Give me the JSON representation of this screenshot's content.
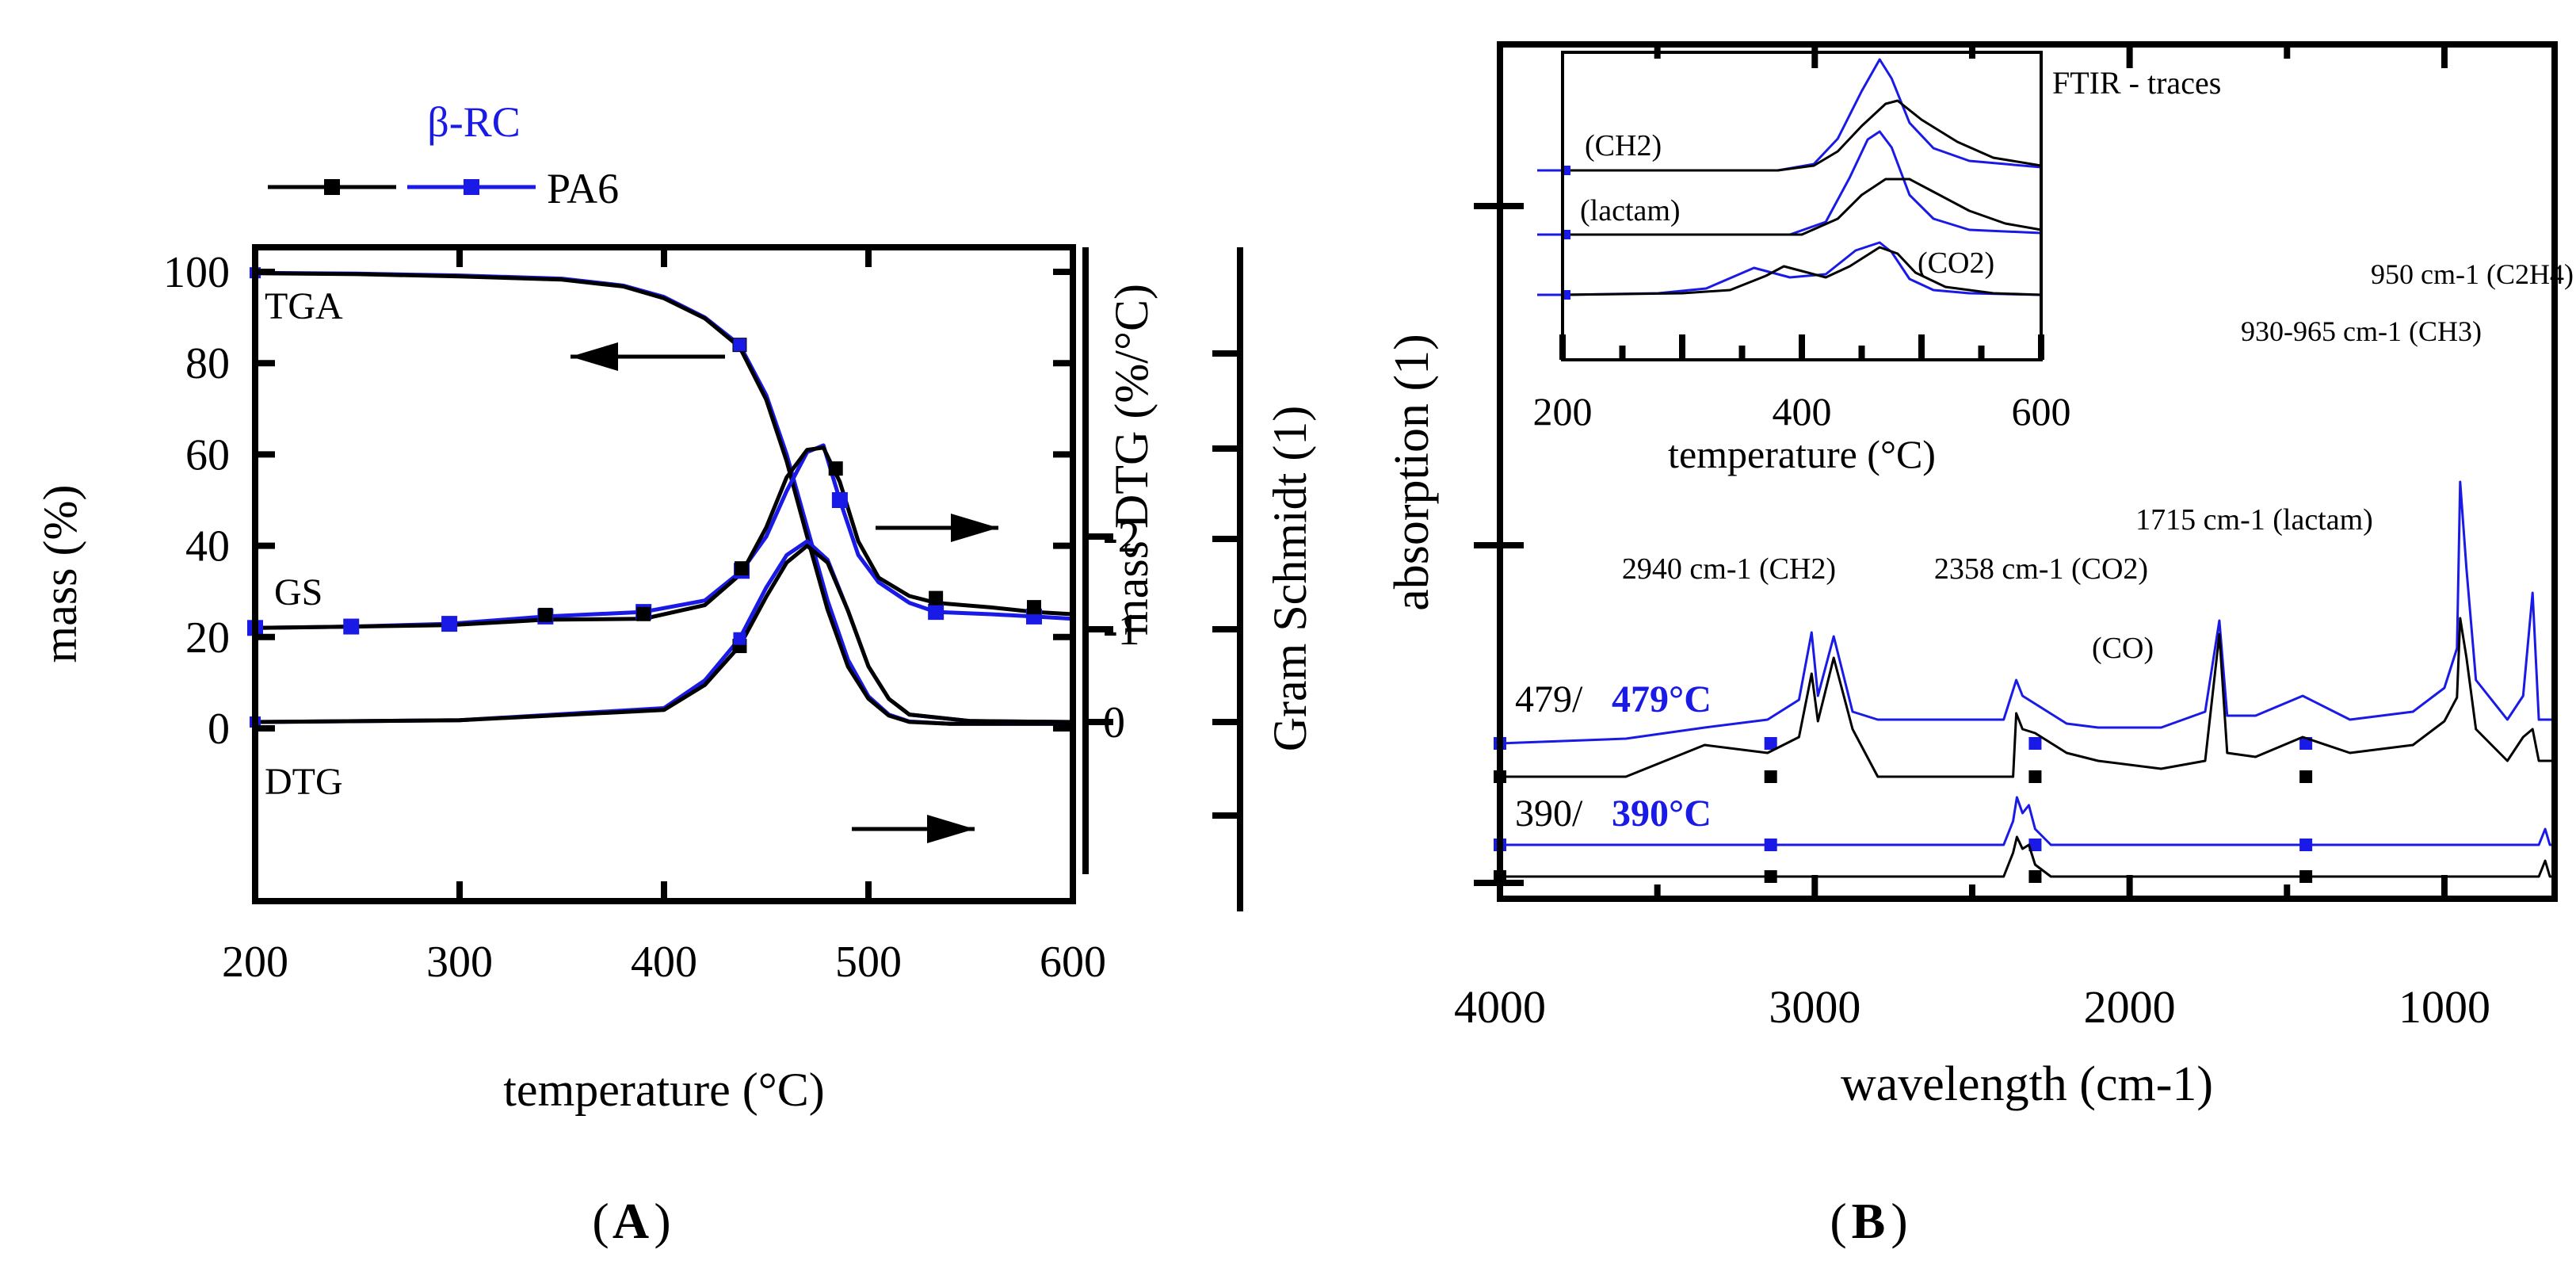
{
  "chart_data": [
    {
      "panel_label": "A",
      "type": "line",
      "xlabel": "temperature (°C)",
      "ylabel": "mass (%)",
      "y2label": "mass DTG (%/°C)",
      "y3label": "Gram Schmidt (1)",
      "xlim": [
        200,
        600
      ],
      "ylim": [
        -35,
        105
      ],
      "x_ticks": [
        "200",
        "300",
        "400",
        "500",
        "600"
      ],
      "y_ticks": [
        "0",
        "20",
        "40",
        "60",
        "80",
        "100"
      ],
      "y2_ticks": [
        "0",
        "-1",
        "-2"
      ],
      "legend": {
        "title": "β-RC",
        "entries": [
          "",
          "PA6"
        ],
        "placement": "top-left outside"
      },
      "curve_labels": [
        "TGA",
        "GS",
        "DTG"
      ],
      "series": [
        {
          "name": "TGA β-RC",
          "color": "#1a1ae6",
          "x": [
            200,
            250,
            300,
            350,
            380,
            400,
            420,
            437,
            450,
            460,
            470,
            480,
            490,
            500,
            510,
            520,
            540,
            560,
            580,
            600
          ],
          "y": [
            99.8,
            99.6,
            99.2,
            98.5,
            97.0,
            94.5,
            90.0,
            84.0,
            73.0,
            60.0,
            44.0,
            28.0,
            15.0,
            7.0,
            3.0,
            1.5,
            1.0,
            1.0,
            1.0,
            1.0
          ]
        },
        {
          "name": "TGA PA6",
          "color": "#000000",
          "x": [
            200,
            250,
            300,
            350,
            380,
            400,
            420,
            437,
            450,
            460,
            470,
            480,
            490,
            500,
            510,
            520,
            540,
            560,
            580,
            600
          ],
          "y": [
            99.7,
            99.5,
            99.0,
            98.3,
            96.8,
            94.2,
            89.8,
            83.5,
            72.0,
            58.5,
            42.0,
            26.0,
            13.5,
            6.5,
            2.8,
            1.4,
            1.0,
            1.0,
            1.0,
            1.0
          ]
        },
        {
          "name": "GS β-RC",
          "color": "#1a1ae6",
          "x": [
            200,
            247,
            295,
            342,
            390,
            420,
            438,
            450,
            460,
            470,
            478,
            486,
            495,
            505,
            520,
            533,
            560,
            581,
            600
          ],
          "y": [
            22.0,
            22.3,
            22.9,
            24.5,
            25.5,
            28.0,
            34.5,
            42.0,
            52.0,
            60.5,
            62.0,
            50.0,
            38.0,
            32.0,
            27.5,
            25.5,
            25.0,
            24.5,
            24.0
          ]
        },
        {
          "name": "GS PA6",
          "color": "#000000",
          "x": [
            200,
            247,
            295,
            342,
            390,
            420,
            438,
            450,
            460,
            470,
            478,
            486,
            495,
            505,
            520,
            533,
            560,
            581,
            600
          ],
          "y": [
            22.0,
            22.3,
            22.6,
            23.8,
            24.0,
            27.0,
            34.0,
            44.0,
            55.0,
            61.0,
            61.5,
            54.0,
            41.0,
            33.0,
            29.0,
            27.5,
            26.5,
            25.5,
            25.0
          ]
        },
        {
          "name": "DTG β-RC",
          "color": "#1a1ae6",
          "x": [
            200,
            300,
            400,
            420,
            437,
            450,
            460,
            470,
            480,
            490,
            500,
            510,
            520,
            550,
            600
          ],
          "y": [
            0.0,
            -0.02,
            -0.15,
            -0.45,
            -0.9,
            -1.45,
            -1.8,
            -1.95,
            -1.75,
            -1.2,
            -0.6,
            -0.25,
            -0.08,
            -0.01,
            0.0
          ]
        },
        {
          "name": "DTG PA6",
          "color": "#000000",
          "x": [
            200,
            300,
            400,
            420,
            437,
            450,
            460,
            470,
            480,
            490,
            500,
            510,
            520,
            550,
            600
          ],
          "y": [
            0.0,
            -0.02,
            -0.13,
            -0.4,
            -0.82,
            -1.35,
            -1.72,
            -1.9,
            -1.72,
            -1.2,
            -0.6,
            -0.25,
            -0.08,
            -0.01,
            0.0
          ]
        }
      ]
    },
    {
      "panel_label": "B",
      "type": "line",
      "xlabel": "wavelength (cm-1)",
      "ylabel": "absorption (1)",
      "xlim": [
        4000,
        650
      ],
      "x_ticks": [
        "4000",
        "3000",
        "2000",
        "1000"
      ],
      "row_labels": [
        {
          "black": "479/",
          "blue": "479°C"
        },
        {
          "black": "390/",
          "blue": "390°C"
        }
      ],
      "annotations": [
        "2940 cm-1 (CH2)",
        "2358 cm-1 (CO2)",
        "(CO)",
        "1715 cm-1 (lactam)",
        "930-965 cm-1 (CH3)",
        "950 cm-1 (C2H4)"
      ],
      "series": [
        {
          "name": "479°C β-RC",
          "color": "#1a1ae6",
          "x": [
            4000,
            3600,
            3350,
            3150,
            3050,
            3010,
            2990,
            2940,
            2880,
            2800,
            2600,
            2400,
            2360,
            2340,
            2300,
            2200,
            2100,
            1900,
            1760,
            1715,
            1690,
            1600,
            1450,
            1300,
            1100,
            1000,
            960,
            950,
            930,
            900,
            800,
            750,
            720,
            700,
            650
          ],
          "y": [
            0.0,
            0.006,
            0.02,
            0.03,
            0.055,
            0.14,
            0.06,
            0.135,
            0.04,
            0.03,
            0.03,
            0.03,
            0.08,
            0.06,
            0.05,
            0.025,
            0.02,
            0.02,
            0.04,
            0.155,
            0.035,
            0.035,
            0.06,
            0.03,
            0.04,
            0.07,
            0.12,
            0.33,
            0.22,
            0.08,
            0.03,
            0.06,
            0.19,
            0.03,
            0.03
          ]
        },
        {
          "name": "479°C PA6",
          "color": "#000000",
          "x": [
            4000,
            3600,
            3350,
            3150,
            3050,
            3010,
            2990,
            2940,
            2880,
            2800,
            2600,
            2400,
            2370,
            2360,
            2340,
            2300,
            2200,
            2100,
            1900,
            1760,
            1715,
            1690,
            1600,
            1450,
            1300,
            1100,
            1000,
            960,
            950,
            930,
            900,
            800,
            750,
            720,
            700,
            650
          ],
          "y": [
            0.0,
            0.0,
            0.04,
            0.03,
            0.05,
            0.13,
            0.07,
            0.15,
            0.06,
            0.0,
            0.0,
            0.0,
            0.0,
            0.08,
            0.06,
            0.055,
            0.03,
            0.02,
            0.01,
            0.02,
            0.18,
            0.03,
            0.025,
            0.05,
            0.03,
            0.04,
            0.07,
            0.1,
            0.2,
            0.15,
            0.06,
            0.02,
            0.05,
            0.06,
            0.02,
            0.02
          ]
        },
        {
          "name": "390°C β-RC",
          "color": "#1a1ae6",
          "x": [
            4000,
            3000,
            2400,
            2370,
            2358,
            2340,
            2320,
            2300,
            2250,
            1500,
            1000,
            700,
            680,
            665,
            650
          ],
          "y": [
            0.0,
            0.0,
            0.0,
            0.03,
            0.06,
            0.04,
            0.05,
            0.02,
            0.0,
            0.0,
            0.0,
            0.0,
            0.02,
            0.0,
            0.0
          ]
        },
        {
          "name": "390°C PA6",
          "color": "#000000",
          "x": [
            4000,
            3000,
            2400,
            2370,
            2358,
            2340,
            2320,
            2300,
            2250,
            1500,
            1000,
            700,
            680,
            665,
            650
          ],
          "y": [
            0.0,
            0.0,
            0.0,
            0.03,
            0.05,
            0.035,
            0.04,
            0.015,
            0.0,
            0.0,
            0.0,
            0.0,
            0.02,
            0.0,
            0.0
          ]
        }
      ]
    },
    {
      "panel_label": "B-inset",
      "type": "line",
      "title": "FTIR - traces",
      "xlabel": "temperature (°C)",
      "xlim": [
        200,
        600
      ],
      "x_ticks": [
        "200",
        "400",
        "600"
      ],
      "trace_labels": [
        "(CH2)",
        "(lactam)",
        "(CO2)"
      ],
      "series": [
        {
          "name": "CH2 β-RC",
          "color": "#1a1ae6",
          "x": [
            200,
            380,
            410,
            430,
            450,
            465,
            475,
            490,
            510,
            540,
            600
          ],
          "y": [
            0,
            0,
            4,
            20,
            50,
            70,
            58,
            30,
            14,
            6,
            2
          ]
        },
        {
          "name": "CH2 PA6",
          "color": "#000000",
          "x": [
            200,
            380,
            410,
            430,
            450,
            470,
            480,
            500,
            530,
            560,
            600
          ],
          "y": [
            0,
            0,
            3,
            12,
            28,
            42,
            44,
            32,
            18,
            8,
            3
          ]
        },
        {
          "name": "lactam β-RC",
          "color": "#1a1ae6",
          "x": [
            200,
            390,
            420,
            440,
            455,
            465,
            475,
            490,
            510,
            540,
            600
          ],
          "y": [
            0,
            0,
            8,
            36,
            60,
            65,
            55,
            25,
            10,
            3,
            1
          ]
        },
        {
          "name": "lactam PA6",
          "color": "#000000",
          "x": [
            200,
            400,
            430,
            450,
            470,
            490,
            510,
            540,
            570,
            600
          ],
          "y": [
            0,
            0,
            10,
            25,
            35,
            35,
            27,
            15,
            7,
            3
          ]
        },
        {
          "name": "CO2 β-RC",
          "color": "#1a1ae6",
          "x": [
            200,
            280,
            320,
            360,
            390,
            420,
            445,
            465,
            475,
            490,
            510,
            540,
            600
          ],
          "y": [
            0,
            1,
            4,
            17,
            11,
            13,
            28,
            33,
            27,
            10,
            3,
            1,
            0
          ]
        },
        {
          "name": "CO2 PA6",
          "color": "#000000",
          "x": [
            200,
            300,
            340,
            370,
            385,
            400,
            420,
            440,
            465,
            480,
            495,
            520,
            560,
            600
          ],
          "y": [
            0,
            1,
            3,
            12,
            18,
            15,
            11,
            18,
            30,
            26,
            14,
            5,
            1,
            0
          ]
        }
      ]
    }
  ]
}
